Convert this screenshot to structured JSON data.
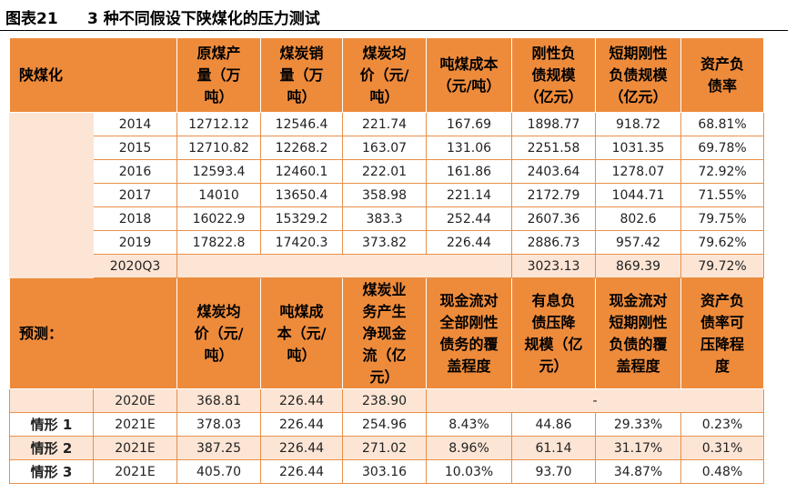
{
  "figure": {
    "label": "图表21",
    "title": "3 种不同假设下陕煤化的压力测试"
  },
  "historical": {
    "corner_label": "陕煤化",
    "headers": [
      [
        "原煤产",
        "量（万",
        "吨）"
      ],
      [
        "煤炭销",
        "量（万",
        "吨）"
      ],
      [
        "煤炭均",
        "价（元/",
        "吨）"
      ],
      [
        "吨煤成本",
        "（元/吨）"
      ],
      [
        "刚性负",
        "债规模",
        "（亿元）"
      ],
      [
        "短期刚性",
        "负债规模",
        "（亿元）"
      ],
      [
        "资产负",
        "债率"
      ]
    ],
    "rows": [
      {
        "year": "2014",
        "values": [
          "12712.12",
          "12546.4",
          "221.74",
          "167.69",
          "1898.77",
          "918.72",
          "68.81%"
        ]
      },
      {
        "year": "2015",
        "values": [
          "12710.82",
          "12268.2",
          "163.07",
          "131.06",
          "2251.58",
          "1031.35",
          "69.78%"
        ]
      },
      {
        "year": "2016",
        "values": [
          "12593.4",
          "12460.1",
          "222.01",
          "161.86",
          "2403.64",
          "1278.07",
          "72.92%"
        ]
      },
      {
        "year": "2017",
        "values": [
          "14010",
          "13650.4",
          "358.98",
          "221.14",
          "2172.79",
          "1044.71",
          "71.55%"
        ]
      },
      {
        "year": "2018",
        "values": [
          "16022.9",
          "15329.2",
          "383.3",
          "252.44",
          "2607.36",
          "802.6",
          "79.75%"
        ]
      },
      {
        "year": "2019",
        "values": [
          "17822.8",
          "17420.3",
          "373.82",
          "226.44",
          "2886.73",
          "957.42",
          "79.62%"
        ]
      }
    ],
    "q3_row": {
      "year": "2020Q3",
      "values": [
        "3023.13",
        "869.39",
        "79.72%"
      ]
    }
  },
  "forecast": {
    "corner_label": "预测：",
    "headers": [
      [
        "煤炭均",
        "价（元/",
        "吨）"
      ],
      [
        "吨煤成",
        "本（元/",
        "吨）"
      ],
      [
        "煤炭业",
        "务产生",
        "净现金",
        "流（亿",
        "元）"
      ],
      [
        "现金流对",
        "全部刚性",
        "债务的覆",
        "盖程度"
      ],
      [
        "有息负",
        "债压降",
        "规模（亿",
        "元）"
      ],
      [
        "现金流对",
        "短期刚性",
        "负债的覆",
        "盖程度"
      ],
      [
        "资产负",
        "债率可",
        "压降程",
        "度"
      ]
    ],
    "base_row": {
      "year": "2020E",
      "values": [
        "368.81",
        "226.44",
        "238.90"
      ],
      "dash": "-"
    },
    "scenarios": [
      {
        "label": "情形 1",
        "year": "2021E",
        "values": [
          "378.03",
          "226.44",
          "254.96",
          "8.43%",
          "44.86",
          "29.33%",
          "0.23%"
        ]
      },
      {
        "label": "情形 2",
        "year": "2021E",
        "values": [
          "387.25",
          "226.44",
          "271.02",
          "8.96%",
          "61.14",
          "31.17%",
          "0.31%"
        ]
      },
      {
        "label": "情形 3",
        "year": "2021E",
        "values": [
          "405.70",
          "226.44",
          "303.16",
          "10.03%",
          "93.70",
          "34.87%",
          "0.48%"
        ]
      }
    ]
  },
  "colors": {
    "header_orange": "#ee8b3b",
    "band_peach": "#fce5d5",
    "highlight_red": "#e53935"
  }
}
